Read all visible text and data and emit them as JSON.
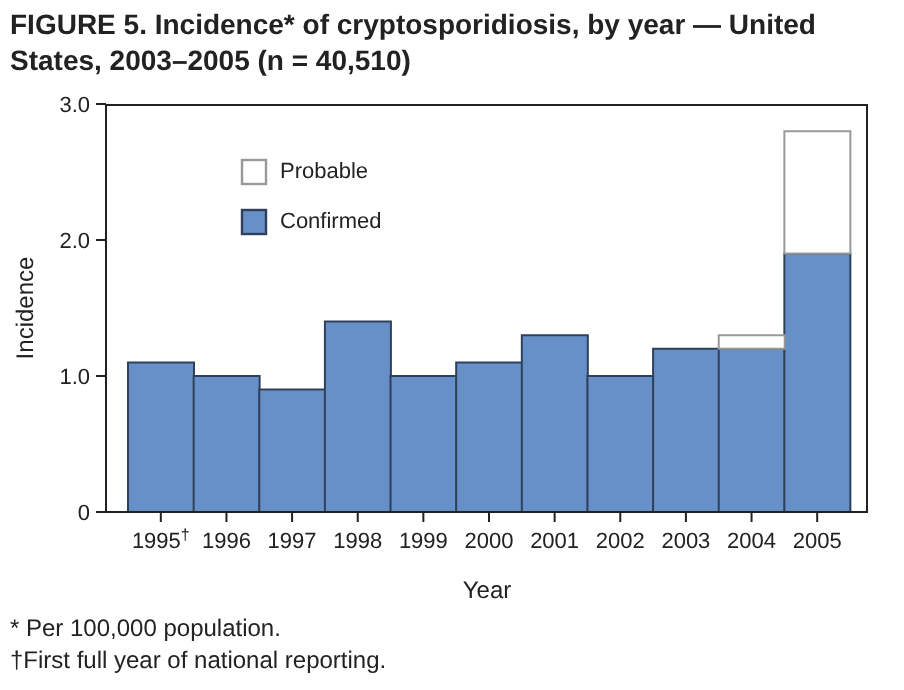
{
  "chart_data": {
    "type": "bar",
    "title": "FIGURE 5. Incidence* of cryptosporidiosis, by year — United States, 2003–2005 (n = 40,510)",
    "xlabel": "Year",
    "ylabel": "Incidence",
    "categories": [
      "1995$^{†}$",
      "1996",
      "1997",
      "1998",
      "1999",
      "2000",
      "2001",
      "2002",
      "2003",
      "2004",
      "2005"
    ],
    "stacked": true,
    "series": [
      {
        "name": "Confirmed",
        "color": "#6890c8",
        "values": [
          1.1,
          1.0,
          0.9,
          1.4,
          1.0,
          1.1,
          1.3,
          1.0,
          1.2,
          1.2,
          1.9
        ]
      },
      {
        "name": "Probable",
        "color": "#ffffff",
        "values": [
          null,
          null,
          null,
          null,
          null,
          null,
          null,
          null,
          null,
          0.1,
          0.9
        ]
      }
    ],
    "ylim": [
      0,
      3
    ],
    "yticks": [
      0,
      {
        "value": 1,
        "label": "1.0"
      },
      {
        "value": 2,
        "label": "2.0"
      },
      {
        "value": 3,
        "label": "3.0"
      }
    ],
    "legend": "top left",
    "annotations": [
      "* Per 100,000 population.",
      "†First full year of national reporting."
    ]
  }
}
